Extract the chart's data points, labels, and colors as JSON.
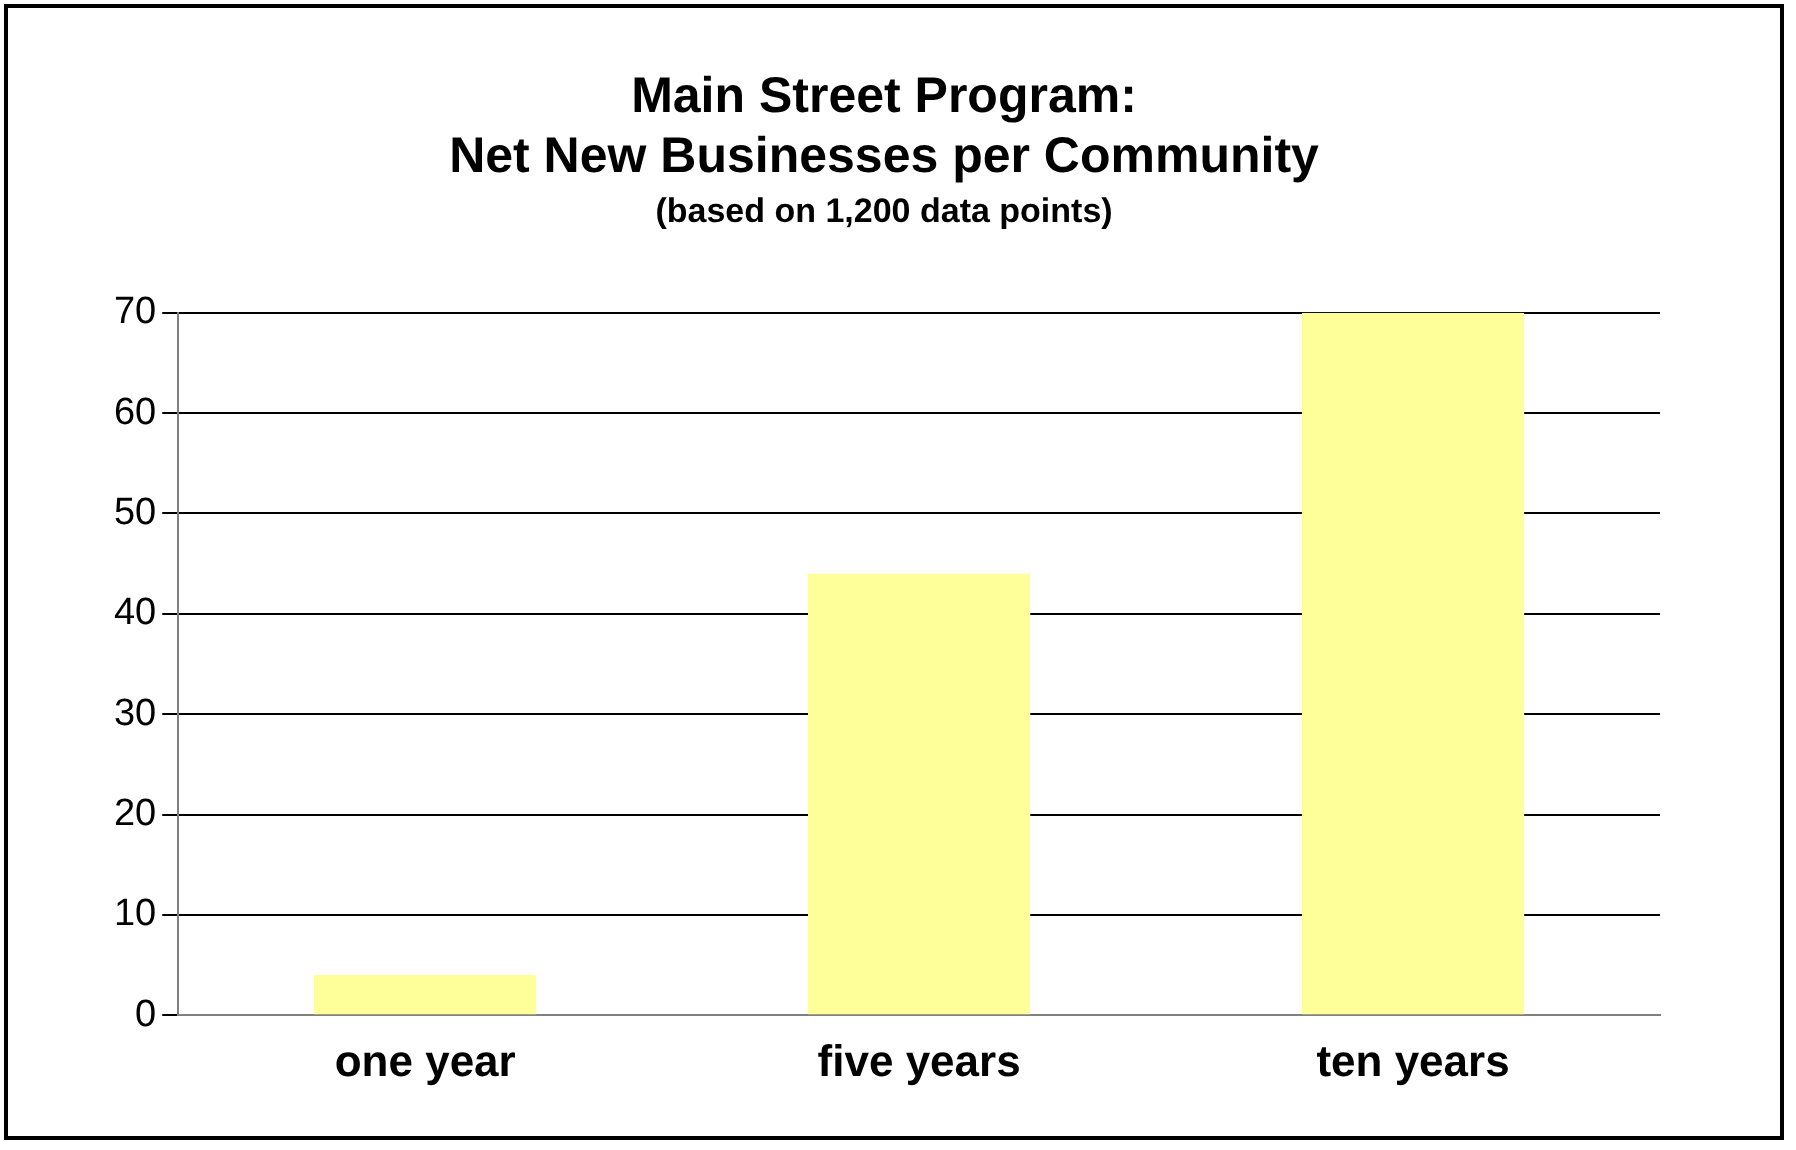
{
  "chart_data": {
    "type": "bar",
    "title": [
      "Main Street Program:",
      "Net New Businesses per Community"
    ],
    "subtitle": "(based on 1,200 data points)",
    "categories": [
      "one year",
      "five years",
      "ten years"
    ],
    "values": [
      4,
      44,
      70
    ],
    "color": "#ffff99",
    "ylim": [
      0,
      70
    ],
    "yticks": [
      0,
      10,
      20,
      30,
      40,
      50,
      60,
      70
    ],
    "grid": "y",
    "legend": false
  }
}
